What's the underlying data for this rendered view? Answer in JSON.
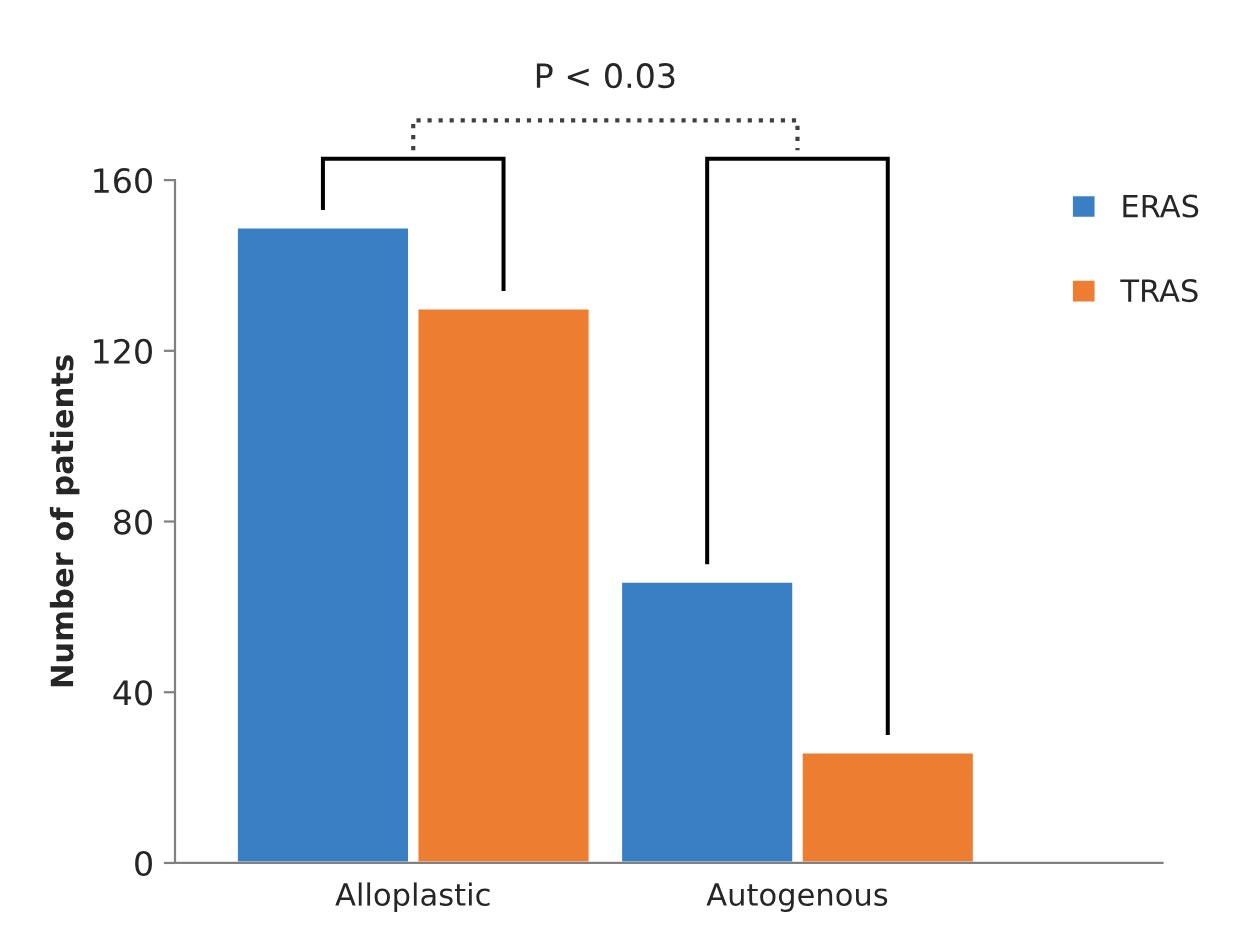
{
  "chart_data": {
    "type": "bar",
    "ylabel": "Number of patients",
    "categories": [
      "Alloplastic",
      "Autogenous"
    ],
    "series": [
      {
        "name": "ERAS",
        "color": "#3a7fc4",
        "values": [
          149,
          66
        ]
      },
      {
        "name": "TRAS",
        "color": "#ed7d31",
        "values": [
          130,
          26
        ]
      }
    ],
    "ylim": [
      0,
      160
    ],
    "yticks": [
      0,
      40,
      80,
      120,
      160
    ],
    "grid": false,
    "legend": "right",
    "annotations": [
      "P < 0.03"
    ]
  }
}
